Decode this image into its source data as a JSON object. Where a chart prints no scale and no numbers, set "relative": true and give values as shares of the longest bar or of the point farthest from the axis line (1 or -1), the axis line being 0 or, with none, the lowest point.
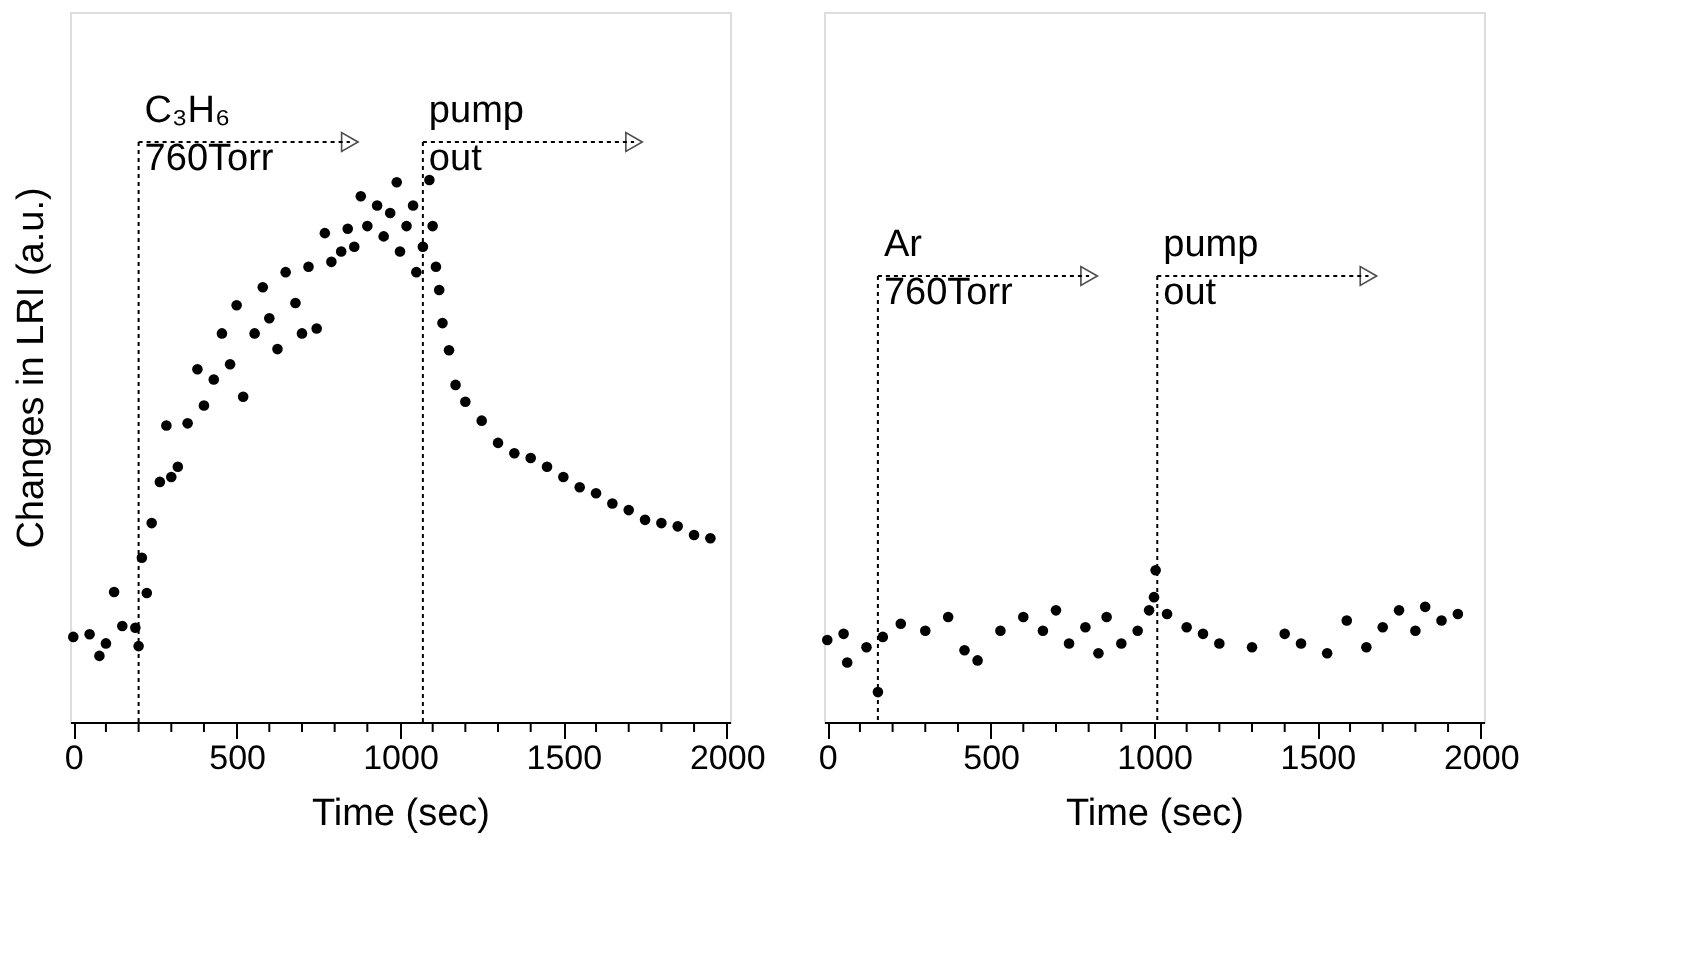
{
  "chart_data": [
    {
      "type": "scatter",
      "relative": true,
      "ylabel": "Changes in LRI (a.u.)",
      "xlabel": "Time (sec)",
      "marker": "circle",
      "grid": false,
      "legend": false,
      "tick_labels": "x",
      "xlim": [
        -10,
        2010
      ],
      "xticks": [
        0,
        {
          "value": 100,
          "label": null
        },
        {
          "value": 200,
          "label": null
        },
        {
          "value": 300,
          "label": null
        },
        {
          "value": 400,
          "label": null
        },
        500,
        {
          "value": 600,
          "label": null
        },
        {
          "value": 700,
          "label": null
        },
        {
          "value": 800,
          "label": null
        },
        {
          "value": 900,
          "label": null
        },
        1000,
        {
          "value": 1100,
          "label": null
        },
        {
          "value": 1200,
          "label": null
        },
        {
          "value": 1300,
          "label": null
        },
        {
          "value": 1400,
          "label": null
        },
        1500,
        {
          "value": 1600,
          "label": null
        },
        {
          "value": 1700,
          "label": null
        },
        {
          "value": 1800,
          "label": null
        },
        {
          "value": 1900,
          "label": null
        },
        2000
      ],
      "ref_lines": [
        {
          "axis": "x",
          "value": 200,
          "label": "C₃H₆\n760Torr",
          "line_style": "dotted",
          "color": "#000000"
        },
        {
          "axis": "x",
          "value": 1070,
          "label": "pump\nout",
          "line_style": "dotted",
          "color": "#000000"
        }
      ],
      "series": [
        {
          "color": "#000000",
          "x": [
            0,
            50,
            80,
            100,
            125,
            150,
            190,
            200,
            210,
            225,
            240,
            265,
            285,
            300,
            320,
            350,
            380,
            400,
            430,
            455,
            480,
            500,
            520,
            555,
            580,
            600,
            625,
            650,
            680,
            700,
            720,
            745,
            770,
            790,
            820,
            840,
            860,
            880,
            900,
            930,
            950,
            970,
            990,
            1000,
            1020,
            1040,
            1050,
            1070,
            1090,
            1100,
            1110,
            1120,
            1130,
            1150,
            1170,
            1200,
            1250,
            1300,
            1350,
            1400,
            1450,
            1500,
            1550,
            1600,
            1650,
            1700,
            1750,
            1800,
            1850,
            1900,
            1950
          ],
          "values": [
            0.157,
            0.162,
            0.122,
            0.145,
            0.24,
            0.177,
            0.174,
            0.14,
            0.303,
            0.238,
            0.367,
            0.443,
            0.547,
            0.452,
            0.471,
            0.551,
            0.651,
            0.584,
            0.632,
            0.717,
            0.66,
            0.769,
            0.6,
            0.717,
            0.802,
            0.745,
            0.688,
            0.83,
            0.773,
            0.717,
            0.84,
            0.726,
            0.902,
            0.849,
            0.868,
            0.91,
            0.877,
            0.97,
            0.915,
            0.953,
            0.896,
            0.939,
            0.996,
            0.868,
            0.915,
            0.953,
            0.83,
            0.877,
            1.0,
            0.915,
            0.84,
            0.797,
            0.736,
            0.686,
            0.622,
            0.591,
            0.556,
            0.515,
            0.496,
            0.487,
            0.471,
            0.452,
            0.433,
            0.422,
            0.403,
            0.391,
            0.373,
            0.367,
            0.361,
            0.345,
            0.339
          ]
        }
      ]
    },
    {
      "type": "scatter",
      "relative": true,
      "xlabel": "Time (sec)",
      "marker": "circle",
      "grid": false,
      "legend": false,
      "tick_labels": "x",
      "xlim": [
        -10,
        2010
      ],
      "xticks": [
        0,
        {
          "value": 100,
          "label": null
        },
        {
          "value": 200,
          "label": null
        },
        {
          "value": 300,
          "label": null
        },
        {
          "value": 400,
          "label": null
        },
        500,
        {
          "value": 600,
          "label": null
        },
        {
          "value": 700,
          "label": null
        },
        {
          "value": 800,
          "label": null
        },
        {
          "value": 900,
          "label": null
        },
        1000,
        {
          "value": 1100,
          "label": null
        },
        {
          "value": 1200,
          "label": null
        },
        {
          "value": 1300,
          "label": null
        },
        {
          "value": 1400,
          "label": null
        },
        1500,
        {
          "value": 1600,
          "label": null
        },
        {
          "value": 1700,
          "label": null
        },
        {
          "value": 1800,
          "label": null
        },
        {
          "value": 1900,
          "label": null
        },
        2000
      ],
      "ref_lines": [
        {
          "axis": "x",
          "value": 155,
          "label": "Ar\n760Torr",
          "line_style": "dotted",
          "color": "#000000"
        },
        {
          "axis": "x",
          "value": 1010,
          "label": "pump\nout",
          "line_style": "dotted",
          "color": "#000000"
        }
      ],
      "series": [
        {
          "color": "#000000",
          "x": [
            0,
            50,
            61,
            120,
            155,
            170,
            225,
            300,
            370,
            420,
            460,
            530,
            600,
            660,
            700,
            740,
            790,
            830,
            855,
            900,
            950,
            985,
            1000,
            1005,
            1040,
            1100,
            1150,
            1200,
            1300,
            1400,
            1450,
            1530,
            1590,
            1650,
            1700,
            1750,
            1800,
            1830,
            1880,
            1930
          ],
          "values": [
            0.541,
            0.581,
            0.392,
            0.493,
            0.197,
            0.561,
            0.648,
            0.601,
            0.692,
            0.473,
            0.406,
            0.601,
            0.692,
            0.601,
            0.736,
            0.517,
            0.625,
            0.453,
            0.692,
            0.517,
            0.601,
            0.736,
            0.823,
            1.0,
            0.712,
            0.625,
            0.581,
            0.517,
            0.493,
            0.581,
            0.517,
            0.453,
            0.669,
            0.493,
            0.625,
            0.736,
            0.601,
            0.759,
            0.669,
            0.712
          ]
        }
      ]
    }
  ]
}
